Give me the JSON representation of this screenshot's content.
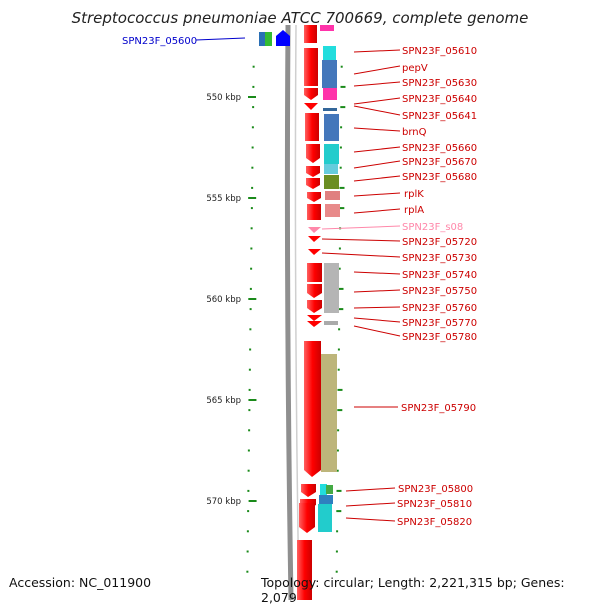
{
  "title": "Streptococcus pneumoniae ATCC 700669, complete genome",
  "footer": {
    "accession": "Accession: NC_011900",
    "summary": "Topology: circular; Length: 2,221,315 bp; Genes: 2,079"
  },
  "colors": {
    "backbone": "#8a8a8a",
    "gene_forward": "#ff0000",
    "tick": "#1a8a1a",
    "label_red": "#cc0000",
    "label_blue": "#0000cc",
    "label_pink": "#ff88aa"
  },
  "scale": {
    "unit": "kbp",
    "major_ticks": [
      {
        "kbp": 550,
        "label": "550 kbp"
      },
      {
        "kbp": 555,
        "label": "555 kbp"
      },
      {
        "kbp": 560,
        "label": "560 kbp"
      },
      {
        "kbp": 565,
        "label": "565 kbp"
      },
      {
        "kbp": 570,
        "label": "570 kbp"
      }
    ]
  },
  "features": [
    {
      "name": "SPN23F_05600",
      "color": "label_blue",
      "side": "left"
    },
    {
      "name": "SPN23F_05610",
      "color": "label_red",
      "side": "right"
    },
    {
      "name": "pepV",
      "color": "label_red",
      "side": "right"
    },
    {
      "name": "SPN23F_05630",
      "color": "label_red",
      "side": "right"
    },
    {
      "name": "SPN23F_05640",
      "color": "label_red",
      "side": "right"
    },
    {
      "name": "SPN23F_05641",
      "color": "label_red",
      "side": "right"
    },
    {
      "name": "brnQ",
      "color": "label_red",
      "side": "right"
    },
    {
      "name": "SPN23F_05660",
      "color": "label_red",
      "side": "right"
    },
    {
      "name": "SPN23F_05670",
      "color": "label_red",
      "side": "right"
    },
    {
      "name": "SPN23F_05680",
      "color": "label_red",
      "side": "right"
    },
    {
      "name": "rplK",
      "color": "label_red",
      "side": "right"
    },
    {
      "name": "rplA",
      "color": "label_red",
      "side": "right"
    },
    {
      "name": "SPN23F_s08",
      "color": "label_pink",
      "side": "right"
    },
    {
      "name": "SPN23F_05720",
      "color": "label_red",
      "side": "right"
    },
    {
      "name": "SPN23F_05730",
      "color": "label_red",
      "side": "right"
    },
    {
      "name": "SPN23F_05740",
      "color": "label_red",
      "side": "right"
    },
    {
      "name": "SPN23F_05750",
      "color": "label_red",
      "side": "right"
    },
    {
      "name": "SPN23F_05760",
      "color": "label_red",
      "side": "right"
    },
    {
      "name": "SPN23F_05770",
      "color": "label_red",
      "side": "right"
    },
    {
      "name": "SPN23F_05780",
      "color": "label_red",
      "side": "right"
    },
    {
      "name": "SPN23F_05790",
      "color": "label_red",
      "side": "right"
    },
    {
      "name": "SPN23F_05800",
      "color": "label_red",
      "side": "right"
    },
    {
      "name": "SPN23F_05810",
      "color": "label_red",
      "side": "right"
    },
    {
      "name": "SPN23F_05820",
      "color": "label_red",
      "side": "right"
    }
  ]
}
